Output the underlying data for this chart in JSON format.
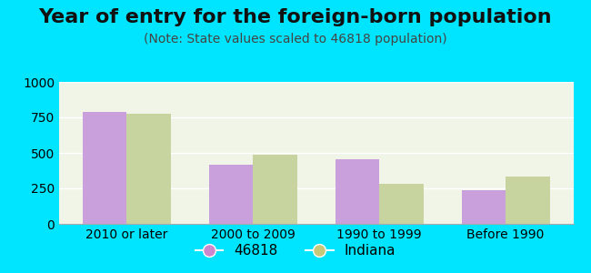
{
  "title": "Year of entry for the foreign-born population",
  "subtitle": "(Note: State values scaled to 46818 population)",
  "categories": [
    "2010 or later",
    "2000 to 2009",
    "1990 to 1999",
    "Before 1990"
  ],
  "values_46818": [
    790,
    415,
    455,
    235
  ],
  "values_indiana": [
    775,
    490,
    285,
    335
  ],
  "color_46818": "#c9a0dc",
  "color_indiana": "#c8d4a0",
  "legend_46818": "46818",
  "legend_indiana": "Indiana",
  "legend_dot_46818": "#cc88cc",
  "legend_dot_indiana": "#c8c87a",
  "ylim": [
    0,
    1000
  ],
  "yticks": [
    0,
    250,
    500,
    750,
    1000
  ],
  "background_outer": "#00e5ff",
  "background_inner": "#f0f5e8",
  "bar_width": 0.35,
  "title_fontsize": 16,
  "subtitle_fontsize": 10,
  "tick_fontsize": 10,
  "legend_fontsize": 11
}
